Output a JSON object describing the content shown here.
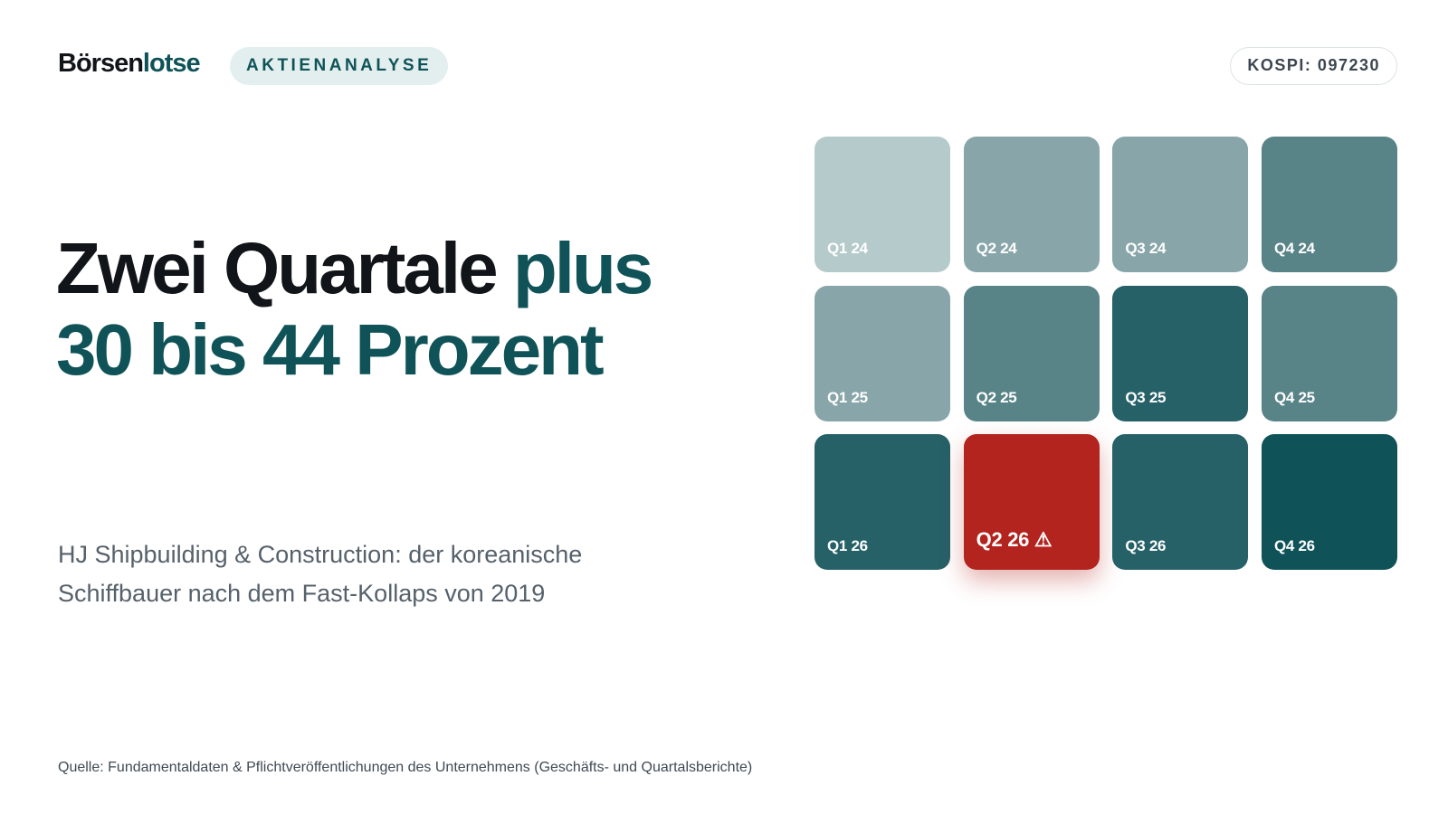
{
  "header": {
    "brand_main": "Börsen",
    "brand_accent": "lotse",
    "category": "AKTIENANALYSE",
    "ticker": "KOSPI: 097230"
  },
  "headline": {
    "part1": "Zwei Quartale ",
    "part1_accent": "plus",
    "part2": "30 bis 44 Prozent"
  },
  "subline": "HJ Shipbuilding & Construction: der koreanische Schiffbauer nach dem Fast-Kollaps von 2019",
  "source": "Quelle: Fundamentaldaten & Pflichtveröffentlichungen des Unternehmens (Geschäfts- und Quartalsberichte)",
  "colors": {
    "accent": "#0f5358",
    "highlight": "#b2241d"
  },
  "tiles": [
    {
      "label": "Q1 24",
      "color": "#b5caca"
    },
    {
      "label": "Q2 24",
      "color": "#88a6a9"
    },
    {
      "label": "Q3 24",
      "color": "#88a6a9"
    },
    {
      "label": "Q4 24",
      "color": "#588387"
    },
    {
      "label": "Q1 25",
      "color": "#88a6a9"
    },
    {
      "label": "Q2 25",
      "color": "#588387"
    },
    {
      "label": "Q3 25",
      "color": "#266168"
    },
    {
      "label": "Q4 25",
      "color": "#588387"
    },
    {
      "label": "Q1 26",
      "color": "#266168"
    },
    {
      "label": "Q2 26 ⚠",
      "color": "#b2241d",
      "highlight": true
    },
    {
      "label": "Q3 26",
      "color": "#266168"
    },
    {
      "label": "Q4 26",
      "color": "#0f5358"
    }
  ]
}
